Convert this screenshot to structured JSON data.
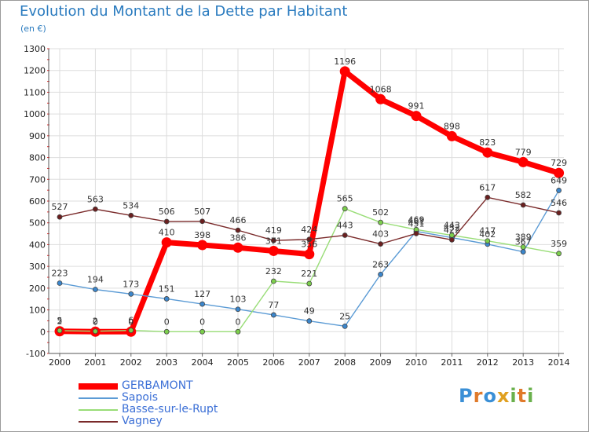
{
  "title": "Evolution du Montant de la Dette par Habitant",
  "subtitle": "(en €)",
  "logo": {
    "letters": [
      "P",
      "r",
      "o",
      "x",
      "i",
      "t",
      "i"
    ],
    "colors": [
      "#3a8fd6",
      "#e07a2a",
      "#3a8fd6",
      "#e0a020",
      "#6ab04c",
      "#e07a2a",
      "#6ab04c"
    ]
  },
  "chart_data": {
    "type": "line",
    "title": "Evolution du Montant de la Dette par Habitant",
    "subtitle": "(en €)",
    "xlabel": "",
    "ylabel": "",
    "x": [
      "2000",
      "2001",
      "2002",
      "2003",
      "2004",
      "2005",
      "2006",
      "2007",
      "2008",
      "2009",
      "2010",
      "2011",
      "2012",
      "2013",
      "2014"
    ],
    "ylim": [
      -100,
      1300
    ],
    "yticks": [
      -100,
      0,
      100,
      200,
      300,
      400,
      500,
      600,
      700,
      800,
      900,
      1000,
      1100,
      1200,
      1300
    ],
    "grid": true,
    "legend_position": "bottom-left",
    "series": [
      {
        "name": "GERBAMONT",
        "color": "#ff0000",
        "marker_color": "#ff0000",
        "values": [
          2,
          0,
          0,
          410,
          398,
          386,
          371,
          356,
          1196,
          1068,
          991,
          898,
          823,
          779,
          729
        ],
        "labels": [
          "2",
          "0",
          "0",
          "410",
          "398",
          "386",
          "371",
          "356",
          "1196",
          "1068",
          "991",
          "898",
          "823",
          "779",
          "729"
        ]
      },
      {
        "name": "Sapois",
        "color": "#5b9bd5",
        "marker_color": "#3b86cc",
        "values": [
          223,
          194,
          173,
          151,
          127,
          103,
          77,
          49,
          25,
          263,
          461,
          432,
          402,
          367,
          649
        ],
        "labels": [
          "223",
          "194",
          "173",
          "151",
          "127",
          "103",
          "77",
          "49",
          "25",
          "263",
          "461",
          "432",
          "402",
          "367",
          "649"
        ]
      },
      {
        "name": "Basse-sur-le-Rupt",
        "color": "#99dd77",
        "marker_color": "#7ccf4c",
        "values": [
          5,
          2,
          6,
          0,
          0,
          0,
          232,
          221,
          565,
          502,
          469,
          443,
          417,
          389,
          359
        ],
        "labels": [
          "5",
          "2",
          "6",
          "0",
          "0",
          "0",
          "232",
          "221",
          "565",
          "502",
          "469",
          "443",
          "417",
          "389",
          "359"
        ]
      },
      {
        "name": "Vagney",
        "color": "#7a2a2a",
        "marker_color": "#6b1f1f",
        "values": [
          527,
          563,
          534,
          506,
          507,
          466,
          419,
          424,
          443,
          403,
          451,
          422,
          617,
          582,
          546
        ],
        "labels": [
          "527",
          "563",
          "534",
          "506",
          "507",
          "466",
          "419",
          "424",
          "443",
          "403",
          "451",
          "422",
          "617",
          "582",
          "546"
        ]
      }
    ]
  }
}
